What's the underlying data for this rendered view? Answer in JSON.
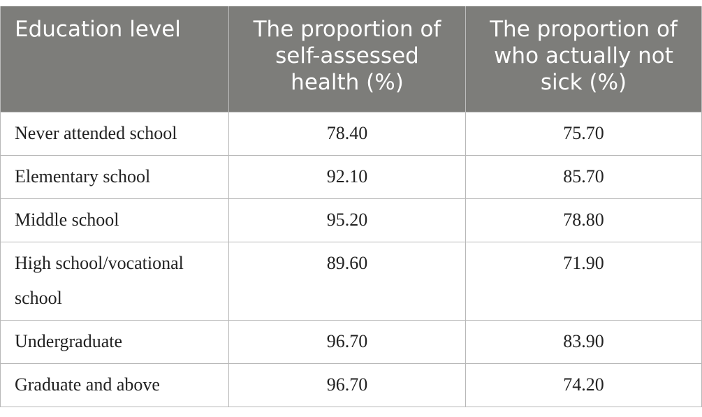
{
  "table": {
    "headers": [
      "Education level",
      "The proportion of self-assessed health (%)",
      "The proportion of who actually not sick (%)"
    ],
    "rows": [
      {
        "level": "Never attended school",
        "self_assessed": "78.40",
        "not_sick": "75.70"
      },
      {
        "level": "Elementary school",
        "self_assessed": "92.10",
        "not_sick": "85.70"
      },
      {
        "level": "Middle school",
        "self_assessed": "95.20",
        "not_sick": "78.80"
      },
      {
        "level": "High school/vocational school",
        "self_assessed": "89.60",
        "not_sick": "71.90"
      },
      {
        "level": "Undergraduate",
        "self_assessed": "96.70",
        "not_sick": "83.90"
      },
      {
        "level": "Graduate and above",
        "self_assessed": "96.70",
        "not_sick": "74.20"
      }
    ]
  },
  "colors": {
    "header_background": "#7d7d7a",
    "header_text": "#ffffff",
    "grid_line": "#b8b8b8"
  }
}
